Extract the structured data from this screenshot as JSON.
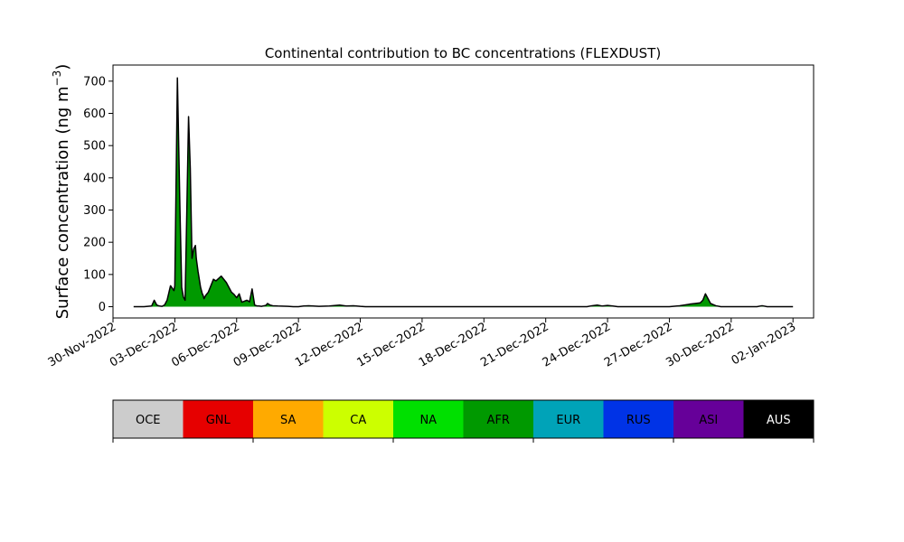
{
  "chart_data": {
    "type": "area",
    "title": "Continental contribution to BC concentrations (FLEXDUST)",
    "ylabel": "Surface concentration (ng m",
    "ylabel_sup": "−3",
    "ylabel_close": ")",
    "xlabel": "",
    "xlim": [
      "2022-11-30",
      "2023-01-03"
    ],
    "ylim": [
      -35,
      750
    ],
    "yticks": [
      0,
      100,
      200,
      300,
      400,
      500,
      600,
      700
    ],
    "xticks": [
      "30-Nov-2022",
      "03-Dec-2022",
      "06-Dec-2022",
      "09-Dec-2022",
      "12-Dec-2022",
      "15-Dec-2022",
      "18-Dec-2022",
      "21-Dec-2022",
      "24-Dec-2022",
      "27-Dec-2022",
      "30-Dec-2022",
      "02-Jan-2023"
    ],
    "grid": false,
    "series": [
      {
        "color": "#009900",
        "x": [
          "2022-12-01",
          "2022-12-01T12:00",
          "2022-12-01T21:00",
          "2022-12-02",
          "2022-12-02T03:00",
          "2022-12-02T06:00",
          "2022-12-02T09:00",
          "2022-12-02T12:00",
          "2022-12-02T15:00",
          "2022-12-02T19:00",
          "2022-12-02T23:00",
          "2022-12-03T00:00",
          "2022-12-03T03:00",
          "2022-12-03T06:00",
          "2022-12-03T08:00",
          "2022-12-03T10:00",
          "2022-12-03T12:00",
          "2022-12-03T14:00",
          "2022-12-03T16:00",
          "2022-12-03T18:00",
          "2022-12-03T20:00",
          "2022-12-03T22:00",
          "2022-12-04T00:00",
          "2022-12-04T01:00",
          "2022-12-04T03:00",
          "2022-12-04T06:00",
          "2022-12-04T08:00",
          "2022-12-04T09:00",
          "2022-12-04T10:00",
          "2022-12-04T12:00",
          "2022-12-04T15:00",
          "2022-12-04T18:00",
          "2022-12-04T21:00",
          "2022-12-05T00:00",
          "2022-12-05T06:00",
          "2022-12-05T12:00",
          "2022-12-05T15:00",
          "2022-12-05T18:00",
          "2022-12-05T21:00",
          "2022-12-06T00:00",
          "2022-12-06T03:00",
          "2022-12-06T06:00",
          "2022-12-06T12:00",
          "2022-12-06T15:00",
          "2022-12-06T18:00",
          "2022-12-06T21:00",
          "2022-12-07T00:00",
          "2022-12-07T02:00",
          "2022-12-07T05:00",
          "2022-12-07T08:00",
          "2022-12-07T10:00",
          "2022-12-07T12:00",
          "2022-12-07T15:00",
          "2022-12-07T18:00",
          "2022-12-08T00:00",
          "2022-12-08T12:00",
          "2022-12-08T18:00",
          "2022-12-09T00:00",
          "2022-12-09T06:00",
          "2022-12-09T12:00",
          "2022-12-10T00:00",
          "2022-12-10T12:00",
          "2022-12-11",
          "2022-12-11T08:00",
          "2022-12-11T16:00",
          "2022-12-12",
          "2022-12-12T06:00",
          "2022-12-12T12:00",
          "2022-12-12T18:00",
          "2022-12-13",
          "2022-12-13T12:00",
          "2022-12-14",
          "2022-12-18",
          "2022-12-22",
          "2022-12-23",
          "2022-12-23T06:00",
          "2022-12-23T12:00",
          "2022-12-23T18:00",
          "2022-12-24",
          "2022-12-24T06:00",
          "2022-12-24T12:00",
          "2022-12-25",
          "2022-12-26",
          "2022-12-27",
          "2022-12-27T12:00",
          "2022-12-28",
          "2022-12-28T06:00",
          "2022-12-28T12:00",
          "2022-12-28T15:00",
          "2022-12-28T18:00",
          "2022-12-28T21:00",
          "2022-12-29",
          "2022-12-29T06:00",
          "2022-12-29T12:00",
          "2022-12-30",
          "2022-12-31",
          "2022-12-31T06:00",
          "2022-12-31T12:00",
          "2022-12-31T18:00",
          "2023-01-01",
          "2023-01-02"
        ],
        "y": [
          0,
          0,
          2,
          20,
          5,
          2,
          1,
          5,
          20,
          65,
          50,
          65,
          710,
          300,
          60,
          30,
          20,
          300,
          590,
          430,
          150,
          180,
          190,
          150,
          110,
          60,
          40,
          35,
          25,
          35,
          45,
          65,
          85,
          80,
          95,
          75,
          60,
          45,
          38,
          28,
          40,
          14,
          20,
          15,
          55,
          5,
          2,
          2,
          1,
          3,
          4,
          10,
          5,
          3,
          2,
          1,
          0,
          0,
          2,
          3,
          1,
          2,
          5,
          2,
          3,
          1,
          0,
          0,
          0,
          0,
          0,
          0,
          0,
          0,
          0,
          3,
          5,
          2,
          4,
          2,
          0,
          0,
          0,
          0,
          3,
          8,
          10,
          12,
          20,
          40,
          25,
          10,
          3,
          0,
          0,
          0,
          0,
          3,
          0,
          0,
          0
        ]
      }
    ],
    "colorbar": {
      "labels": [
        "OCE",
        "GNL",
        "SA",
        "CA",
        "NA",
        "AFR",
        "EUR",
        "RUS",
        "ASI",
        "AUS"
      ],
      "colors": [
        "#cccccc",
        "#e60000",
        "#ffaa00",
        "#ccff00",
        "#00e000",
        "#009900",
        "#00a3b8",
        "#0033e6",
        "#660099",
        "#000000"
      ],
      "text_colors": [
        "#000000",
        "#000000",
        "#000000",
        "#000000",
        "#000000",
        "#000000",
        "#000000",
        "#000000",
        "#000000",
        "#ffffff"
      ]
    }
  }
}
